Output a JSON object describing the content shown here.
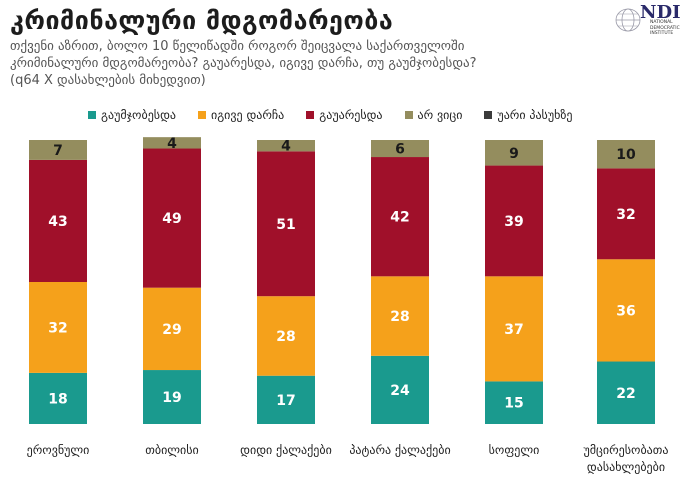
{
  "title": "კრიმინალური მდგომარეობა",
  "subtitle": [
    "თქვენი აზრით, ბოლო 10 წელიწადში როგორ შეიცვალა საქართველოში",
    "კრიმინალური მდგომარეობა? გაუარესდა, იგივე დარჩა, თუ გაუმჯობესდა?",
    "(q64 X დასახლების მიხედვით)"
  ],
  "logo": {
    "name": "NDI",
    "sub": "NATIONAL DEMOCRATIC INSTITUTE"
  },
  "colors": {
    "improved": "#1a9a8e",
    "same": "#f5a11b",
    "worsened": "#a0102a",
    "dont_know": "#948d5e",
    "refused": "#3b3b3b"
  },
  "chart_data": {
    "type": "bar",
    "stacked": true,
    "categories": [
      "ეროვნული",
      "თბილისი",
      "დიდი ქალაქები",
      "პატარა ქალაქები",
      "სოფელი",
      "უმცირესობათა დასახლებები"
    ],
    "series": [
      {
        "name": "გაუმჯობესდა",
        "color": "#1a9a8e",
        "values": [
          18,
          19,
          17,
          24,
          15,
          22
        ]
      },
      {
        "name": "იგივე დარჩა",
        "color": "#f5a11b",
        "values": [
          32,
          29,
          28,
          28,
          37,
          36
        ]
      },
      {
        "name": "გაუარესდა",
        "color": "#a0102a",
        "values": [
          43,
          49,
          51,
          42,
          39,
          32
        ]
      },
      {
        "name": "არ ვიცი",
        "color": "#948d5e",
        "values": [
          7,
          4,
          4,
          6,
          9,
          10
        ]
      },
      {
        "name": "უარი პასუხზე",
        "color": "#3b3b3b",
        "values": [
          0,
          0,
          0,
          0,
          0,
          0
        ]
      }
    ],
    "ylim": [
      0,
      100
    ],
    "grid": false,
    "legend": "top"
  }
}
